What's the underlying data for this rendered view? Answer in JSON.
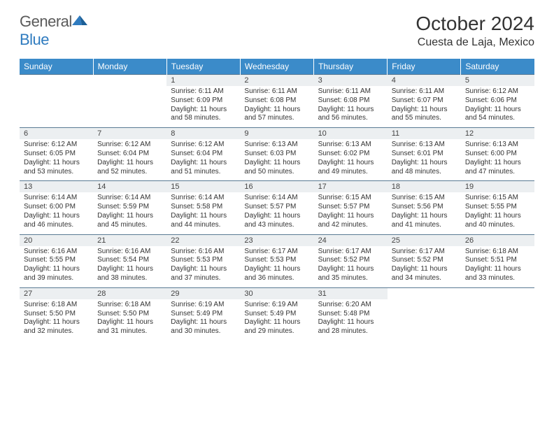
{
  "brand": {
    "general": "General",
    "blue": "Blue"
  },
  "title": "October 2024",
  "location": "Cuesta de Laja, Mexico",
  "colors": {
    "header_bg": "#3b8bc9",
    "header_text": "#ffffff",
    "daynum_bg": "#eceff1",
    "border": "#5a7a94",
    "text": "#333333",
    "logo_gray": "#5a5a5a",
    "logo_blue": "#2f7bbf"
  },
  "typography": {
    "title_fontsize": 28,
    "location_fontsize": 16,
    "header_fontsize": 12,
    "daynum_fontsize": 11,
    "detail_fontsize": 10
  },
  "weekdays": [
    "Sunday",
    "Monday",
    "Tuesday",
    "Wednesday",
    "Thursday",
    "Friday",
    "Saturday"
  ],
  "weeks": [
    [
      null,
      null,
      {
        "n": "1",
        "sr": "Sunrise: 6:11 AM",
        "ss": "Sunset: 6:09 PM",
        "dl": "Daylight: 11 hours and 58 minutes."
      },
      {
        "n": "2",
        "sr": "Sunrise: 6:11 AM",
        "ss": "Sunset: 6:08 PM",
        "dl": "Daylight: 11 hours and 57 minutes."
      },
      {
        "n": "3",
        "sr": "Sunrise: 6:11 AM",
        "ss": "Sunset: 6:08 PM",
        "dl": "Daylight: 11 hours and 56 minutes."
      },
      {
        "n": "4",
        "sr": "Sunrise: 6:11 AM",
        "ss": "Sunset: 6:07 PM",
        "dl": "Daylight: 11 hours and 55 minutes."
      },
      {
        "n": "5",
        "sr": "Sunrise: 6:12 AM",
        "ss": "Sunset: 6:06 PM",
        "dl": "Daylight: 11 hours and 54 minutes."
      }
    ],
    [
      {
        "n": "6",
        "sr": "Sunrise: 6:12 AM",
        "ss": "Sunset: 6:05 PM",
        "dl": "Daylight: 11 hours and 53 minutes."
      },
      {
        "n": "7",
        "sr": "Sunrise: 6:12 AM",
        "ss": "Sunset: 6:04 PM",
        "dl": "Daylight: 11 hours and 52 minutes."
      },
      {
        "n": "8",
        "sr": "Sunrise: 6:12 AM",
        "ss": "Sunset: 6:04 PM",
        "dl": "Daylight: 11 hours and 51 minutes."
      },
      {
        "n": "9",
        "sr": "Sunrise: 6:13 AM",
        "ss": "Sunset: 6:03 PM",
        "dl": "Daylight: 11 hours and 50 minutes."
      },
      {
        "n": "10",
        "sr": "Sunrise: 6:13 AM",
        "ss": "Sunset: 6:02 PM",
        "dl": "Daylight: 11 hours and 49 minutes."
      },
      {
        "n": "11",
        "sr": "Sunrise: 6:13 AM",
        "ss": "Sunset: 6:01 PM",
        "dl": "Daylight: 11 hours and 48 minutes."
      },
      {
        "n": "12",
        "sr": "Sunrise: 6:13 AM",
        "ss": "Sunset: 6:00 PM",
        "dl": "Daylight: 11 hours and 47 minutes."
      }
    ],
    [
      {
        "n": "13",
        "sr": "Sunrise: 6:14 AM",
        "ss": "Sunset: 6:00 PM",
        "dl": "Daylight: 11 hours and 46 minutes."
      },
      {
        "n": "14",
        "sr": "Sunrise: 6:14 AM",
        "ss": "Sunset: 5:59 PM",
        "dl": "Daylight: 11 hours and 45 minutes."
      },
      {
        "n": "15",
        "sr": "Sunrise: 6:14 AM",
        "ss": "Sunset: 5:58 PM",
        "dl": "Daylight: 11 hours and 44 minutes."
      },
      {
        "n": "16",
        "sr": "Sunrise: 6:14 AM",
        "ss": "Sunset: 5:57 PM",
        "dl": "Daylight: 11 hours and 43 minutes."
      },
      {
        "n": "17",
        "sr": "Sunrise: 6:15 AM",
        "ss": "Sunset: 5:57 PM",
        "dl": "Daylight: 11 hours and 42 minutes."
      },
      {
        "n": "18",
        "sr": "Sunrise: 6:15 AM",
        "ss": "Sunset: 5:56 PM",
        "dl": "Daylight: 11 hours and 41 minutes."
      },
      {
        "n": "19",
        "sr": "Sunrise: 6:15 AM",
        "ss": "Sunset: 5:55 PM",
        "dl": "Daylight: 11 hours and 40 minutes."
      }
    ],
    [
      {
        "n": "20",
        "sr": "Sunrise: 6:16 AM",
        "ss": "Sunset: 5:55 PM",
        "dl": "Daylight: 11 hours and 39 minutes."
      },
      {
        "n": "21",
        "sr": "Sunrise: 6:16 AM",
        "ss": "Sunset: 5:54 PM",
        "dl": "Daylight: 11 hours and 38 minutes."
      },
      {
        "n": "22",
        "sr": "Sunrise: 6:16 AM",
        "ss": "Sunset: 5:53 PM",
        "dl": "Daylight: 11 hours and 37 minutes."
      },
      {
        "n": "23",
        "sr": "Sunrise: 6:17 AM",
        "ss": "Sunset: 5:53 PM",
        "dl": "Daylight: 11 hours and 36 minutes."
      },
      {
        "n": "24",
        "sr": "Sunrise: 6:17 AM",
        "ss": "Sunset: 5:52 PM",
        "dl": "Daylight: 11 hours and 35 minutes."
      },
      {
        "n": "25",
        "sr": "Sunrise: 6:17 AM",
        "ss": "Sunset: 5:52 PM",
        "dl": "Daylight: 11 hours and 34 minutes."
      },
      {
        "n": "26",
        "sr": "Sunrise: 6:18 AM",
        "ss": "Sunset: 5:51 PM",
        "dl": "Daylight: 11 hours and 33 minutes."
      }
    ],
    [
      {
        "n": "27",
        "sr": "Sunrise: 6:18 AM",
        "ss": "Sunset: 5:50 PM",
        "dl": "Daylight: 11 hours and 32 minutes."
      },
      {
        "n": "28",
        "sr": "Sunrise: 6:18 AM",
        "ss": "Sunset: 5:50 PM",
        "dl": "Daylight: 11 hours and 31 minutes."
      },
      {
        "n": "29",
        "sr": "Sunrise: 6:19 AM",
        "ss": "Sunset: 5:49 PM",
        "dl": "Daylight: 11 hours and 30 minutes."
      },
      {
        "n": "30",
        "sr": "Sunrise: 6:19 AM",
        "ss": "Sunset: 5:49 PM",
        "dl": "Daylight: 11 hours and 29 minutes."
      },
      {
        "n": "31",
        "sr": "Sunrise: 6:20 AM",
        "ss": "Sunset: 5:48 PM",
        "dl": "Daylight: 11 hours and 28 minutes."
      },
      null,
      null
    ]
  ]
}
